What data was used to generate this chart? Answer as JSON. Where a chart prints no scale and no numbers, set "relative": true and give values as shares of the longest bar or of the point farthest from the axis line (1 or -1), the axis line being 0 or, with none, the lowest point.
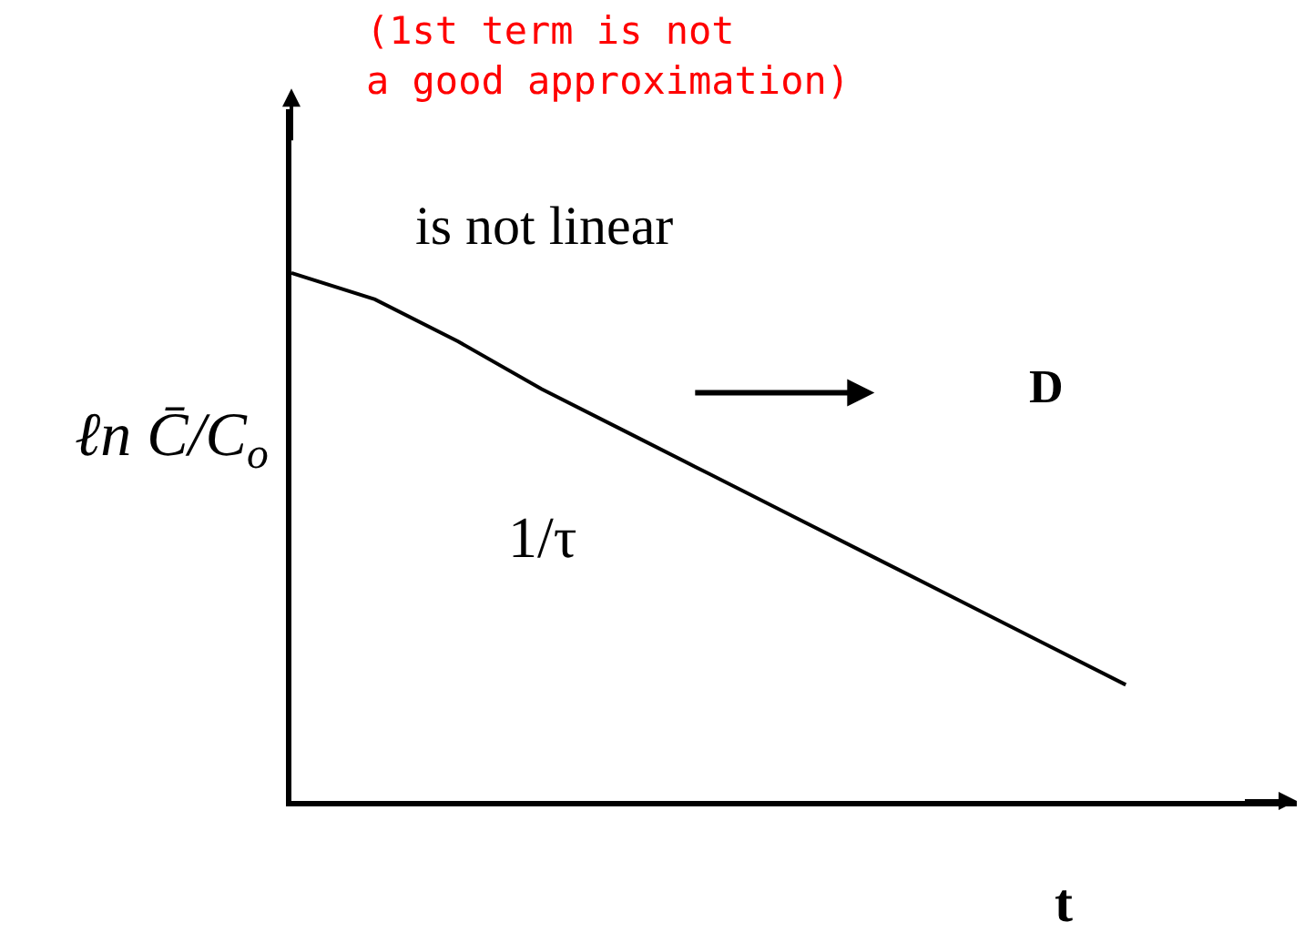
{
  "chart_data": {
    "type": "line",
    "relative": true,
    "categories": [
      null,
      null,
      null,
      null,
      null,
      null,
      null,
      null,
      null,
      null,
      null
    ],
    "values": [
      1.0,
      0.95,
      0.87,
      0.78,
      0.7,
      0.62,
      0.54,
      0.46,
      0.38,
      0.3,
      0.22
    ],
    "color": "#000000",
    "marker": "none",
    "line_style": "solid",
    "legend": false,
    "xlabel": "t",
    "ylabel": "ℓn C̄/C$_{o}$",
    "annotations": [
      "(1st term is not\na good approximation)",
      "is not linear",
      "D",
      "1/τ"
    ]
  }
}
